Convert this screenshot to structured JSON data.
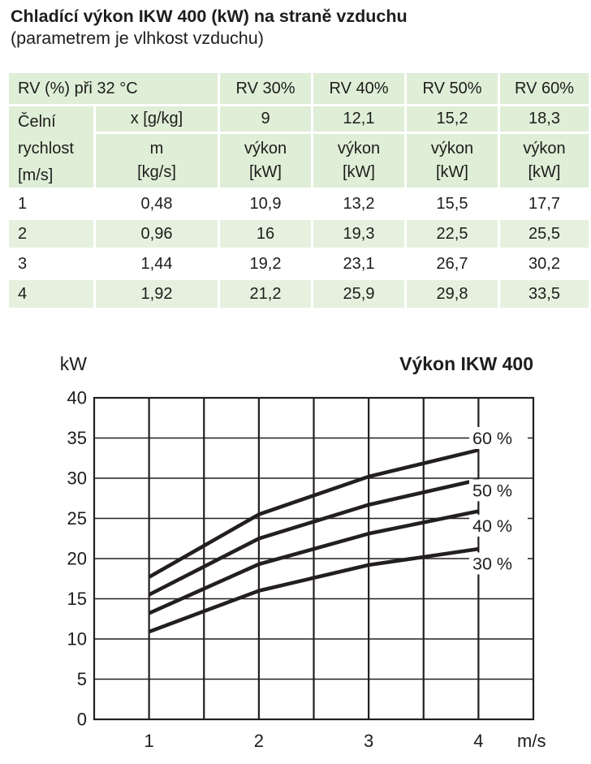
{
  "page": {
    "title": "Chladící výkon IKW 400 (kW) na straně vzduchu",
    "subtitle": "(parametrem je vlhkost vzduchu)"
  },
  "table": {
    "corner_header": "RV (%) při 32 °C",
    "rv_col_headers": [
      "RV 30%",
      "RV 40%",
      "RV 50%",
      "RV 60%"
    ],
    "row_header": "Čelní\nrychlost\n[m/s]",
    "x_row_label": "x [g/kg]",
    "x_row_values": [
      "9",
      "12,1",
      "15,2",
      "18,3"
    ],
    "m_label": "m\n[kg/s]",
    "power_label": "výkon\n[kW]",
    "rows": [
      {
        "speed": "1",
        "m": "0,48",
        "values": [
          "10,9",
          "13,2",
          "15,5",
          "17,7"
        ]
      },
      {
        "speed": "2",
        "m": "0,96",
        "values": [
          "16",
          "19,3",
          "22,5",
          "25,5"
        ]
      },
      {
        "speed": "3",
        "m": "1,44",
        "values": [
          "19,2",
          "23,1",
          "26,7",
          "30,2"
        ]
      },
      {
        "speed": "4",
        "m": "1,92",
        "values": [
          "21,2",
          "25,9",
          "29,8",
          "33,5"
        ]
      }
    ],
    "colors": {
      "header_bg": "#dfeed7",
      "stripe_bg": "#e5f1de",
      "text": "#1d1d1b"
    }
  },
  "chart_data": {
    "type": "line",
    "title": "Výkon IKW 400",
    "y_axis_unit": "kW",
    "x_axis_unit": "m/s",
    "x": [
      1,
      2,
      3,
      4
    ],
    "series": [
      {
        "name": "60 %",
        "values": [
          17.7,
          25.5,
          30.2,
          33.5
        ],
        "label_at_y": 35.0
      },
      {
        "name": "50 %",
        "values": [
          15.5,
          22.5,
          26.7,
          29.8
        ],
        "label_at_y": 28.5
      },
      {
        "name": "40 %",
        "values": [
          13.2,
          19.3,
          23.1,
          25.9
        ],
        "label_at_y": 24.1
      },
      {
        "name": "30 %",
        "values": [
          10.9,
          16.0,
          19.2,
          21.2
        ],
        "label_at_y": 19.4
      }
    ],
    "xlim": [
      0.5,
      4.5
    ],
    "ylim": [
      0,
      40
    ],
    "y_ticks": [
      0,
      5,
      10,
      15,
      20,
      25,
      30,
      35,
      40
    ],
    "x_ticks": [
      1,
      2,
      3,
      4
    ],
    "x_minor_step": 0.5,
    "grid": true,
    "legend_position": "right-of-line-ends",
    "line_color": "#231f20",
    "grid_color": "#231f20"
  }
}
